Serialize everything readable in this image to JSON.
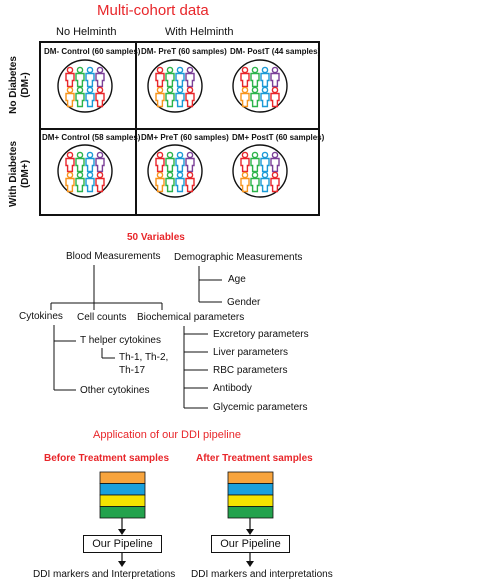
{
  "title": "Multi-cohort data",
  "grid": {
    "col_headers": [
      "No Helminth",
      "With Helminth"
    ],
    "row_headers": [
      "No Diabetes (DM-)",
      "With Diabetes (DM+)"
    ],
    "row_header_lines": [
      [
        "No Diabetes",
        "(DM-)"
      ],
      [
        "With Diabetes",
        "(DM+)"
      ]
    ],
    "cells": [
      "DM- Control (60 samples)",
      "DM- PreT (60 samples)",
      "DM- PostT (44 samples)",
      "DM+ Control (58 samples)",
      "DM+ PreT (60 samples)",
      "DM+ PostT (60 samples)"
    ],
    "person_colors": [
      "#e8262a",
      "#2bb34a",
      "#1a9ad6",
      "#7b3f98",
      "#f7941d",
      "#2bb34a",
      "#1a9ad6",
      "#e8262a"
    ]
  },
  "variables": {
    "title": "50 Variables",
    "blood": "Blood Measurements",
    "demographic": "Demographic Measurements",
    "age": "Age",
    "gender": "Gender",
    "cytokines": "Cytokines",
    "cell_counts": "Cell counts",
    "biochemical": "Biochemical parameters",
    "t_helper": "T helper cytokines",
    "th_line1": "Th-1, Th-2,",
    "th_line2": "Th-17",
    "other_cytokines": "Other  cytokines",
    "bio_items": [
      "Excretory parameters",
      "Liver parameters",
      "RBC parameters",
      "Antibody",
      "Glycemic parameters"
    ]
  },
  "pipeline": {
    "title": "Application of our DDI pipeline",
    "before_label": "Before Treatment samples",
    "after_label": "After Treatment samples",
    "stack_colors": [
      "#f7a43d",
      "#1aa0dc",
      "#f5e300",
      "#23a24d"
    ],
    "box_label": "Our Pipeline",
    "before_output": "DDI markers and Interpretations",
    "after_output": "DDI markers and interpretations"
  }
}
